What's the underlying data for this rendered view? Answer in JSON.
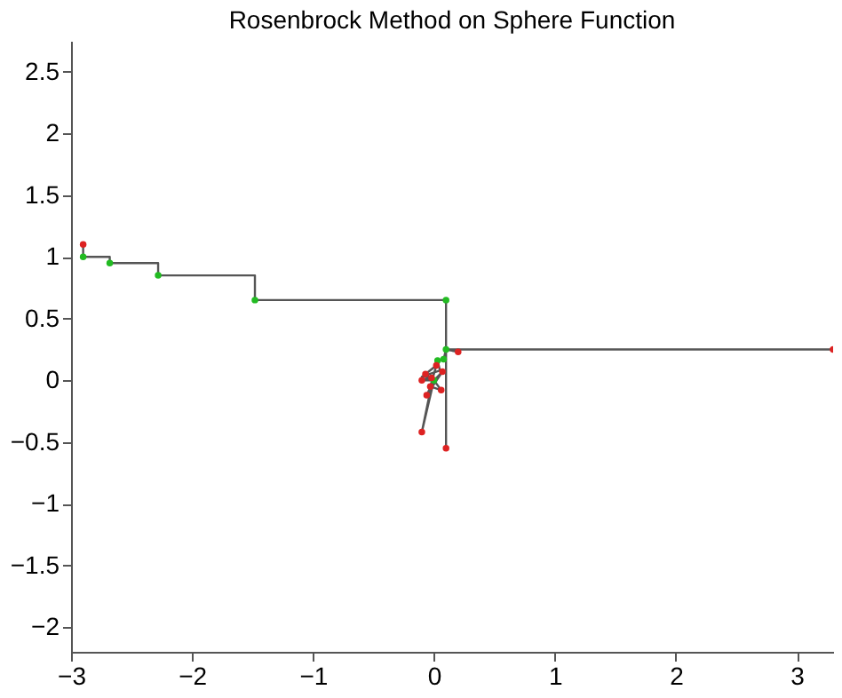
{
  "chart_data": {
    "type": "line",
    "title": "Rosenbrock Method on Sphere Function",
    "xlim": [
      -3,
      3.3
    ],
    "xticks": [
      -3,
      -2,
      -1,
      0,
      1,
      2,
      3
    ],
    "ylim": [
      -2.2,
      2.75
    ],
    "yticks": [
      -2,
      -1.5,
      -1,
      -0.5,
      0,
      0.5,
      1,
      1.5,
      2,
      2.5
    ],
    "grid": false,
    "series": [
      {
        "color": "#555555",
        "marker": "none",
        "line_style": "solid",
        "x": [
          -2.9,
          -2.9,
          -2.68,
          -2.68,
          -2.28,
          -2.28,
          -1.48,
          -1.48,
          0.1,
          0.1,
          3.3,
          0.1,
          0.1,
          0.1,
          0.2,
          0.1,
          0.08,
          0.03,
          0.05,
          -0.1,
          -0.02,
          -0.1,
          0.0,
          0.07,
          -0.06,
          0.0,
          0.06,
          -0.03,
          0.02,
          -0.07,
          0.0,
          -0.1,
          -0.01
        ],
        "values": [
          1.1,
          1.0,
          1.0,
          0.95,
          0.95,
          0.85,
          0.85,
          0.65,
          0.65,
          0.25,
          0.25,
          0.25,
          -0.55,
          0.25,
          0.23,
          0.25,
          0.17,
          0.16,
          0.08,
          0.03,
          0.02,
          0.0,
          0.0,
          0.07,
          -0.12,
          0.0,
          -0.08,
          -0.05,
          0.12,
          0.05,
          0.0,
          -0.42,
          0.01
        ]
      },
      {
        "type": "scatter",
        "color": "#22bb22",
        "marker": "circle",
        "x": [
          -2.9,
          -2.68,
          -2.28,
          -1.48,
          0.1,
          0.1,
          0.08,
          0.03,
          0.0
        ],
        "values": [
          1.0,
          0.95,
          0.85,
          0.65,
          0.65,
          0.25,
          0.17,
          0.16,
          0.0
        ]
      },
      {
        "type": "scatter",
        "color": "#dd2222",
        "marker": "circle",
        "x": [
          -2.9,
          3.3,
          0.2,
          0.1,
          -0.1,
          -0.1,
          -0.07,
          0.07,
          -0.06,
          0.06,
          -0.03,
          0.02,
          -0.02
        ],
        "values": [
          1.1,
          0.25,
          0.23,
          -0.55,
          -0.42,
          0.0,
          0.05,
          0.07,
          -0.12,
          -0.08,
          -0.05,
          0.12,
          0.02
        ]
      }
    ]
  }
}
